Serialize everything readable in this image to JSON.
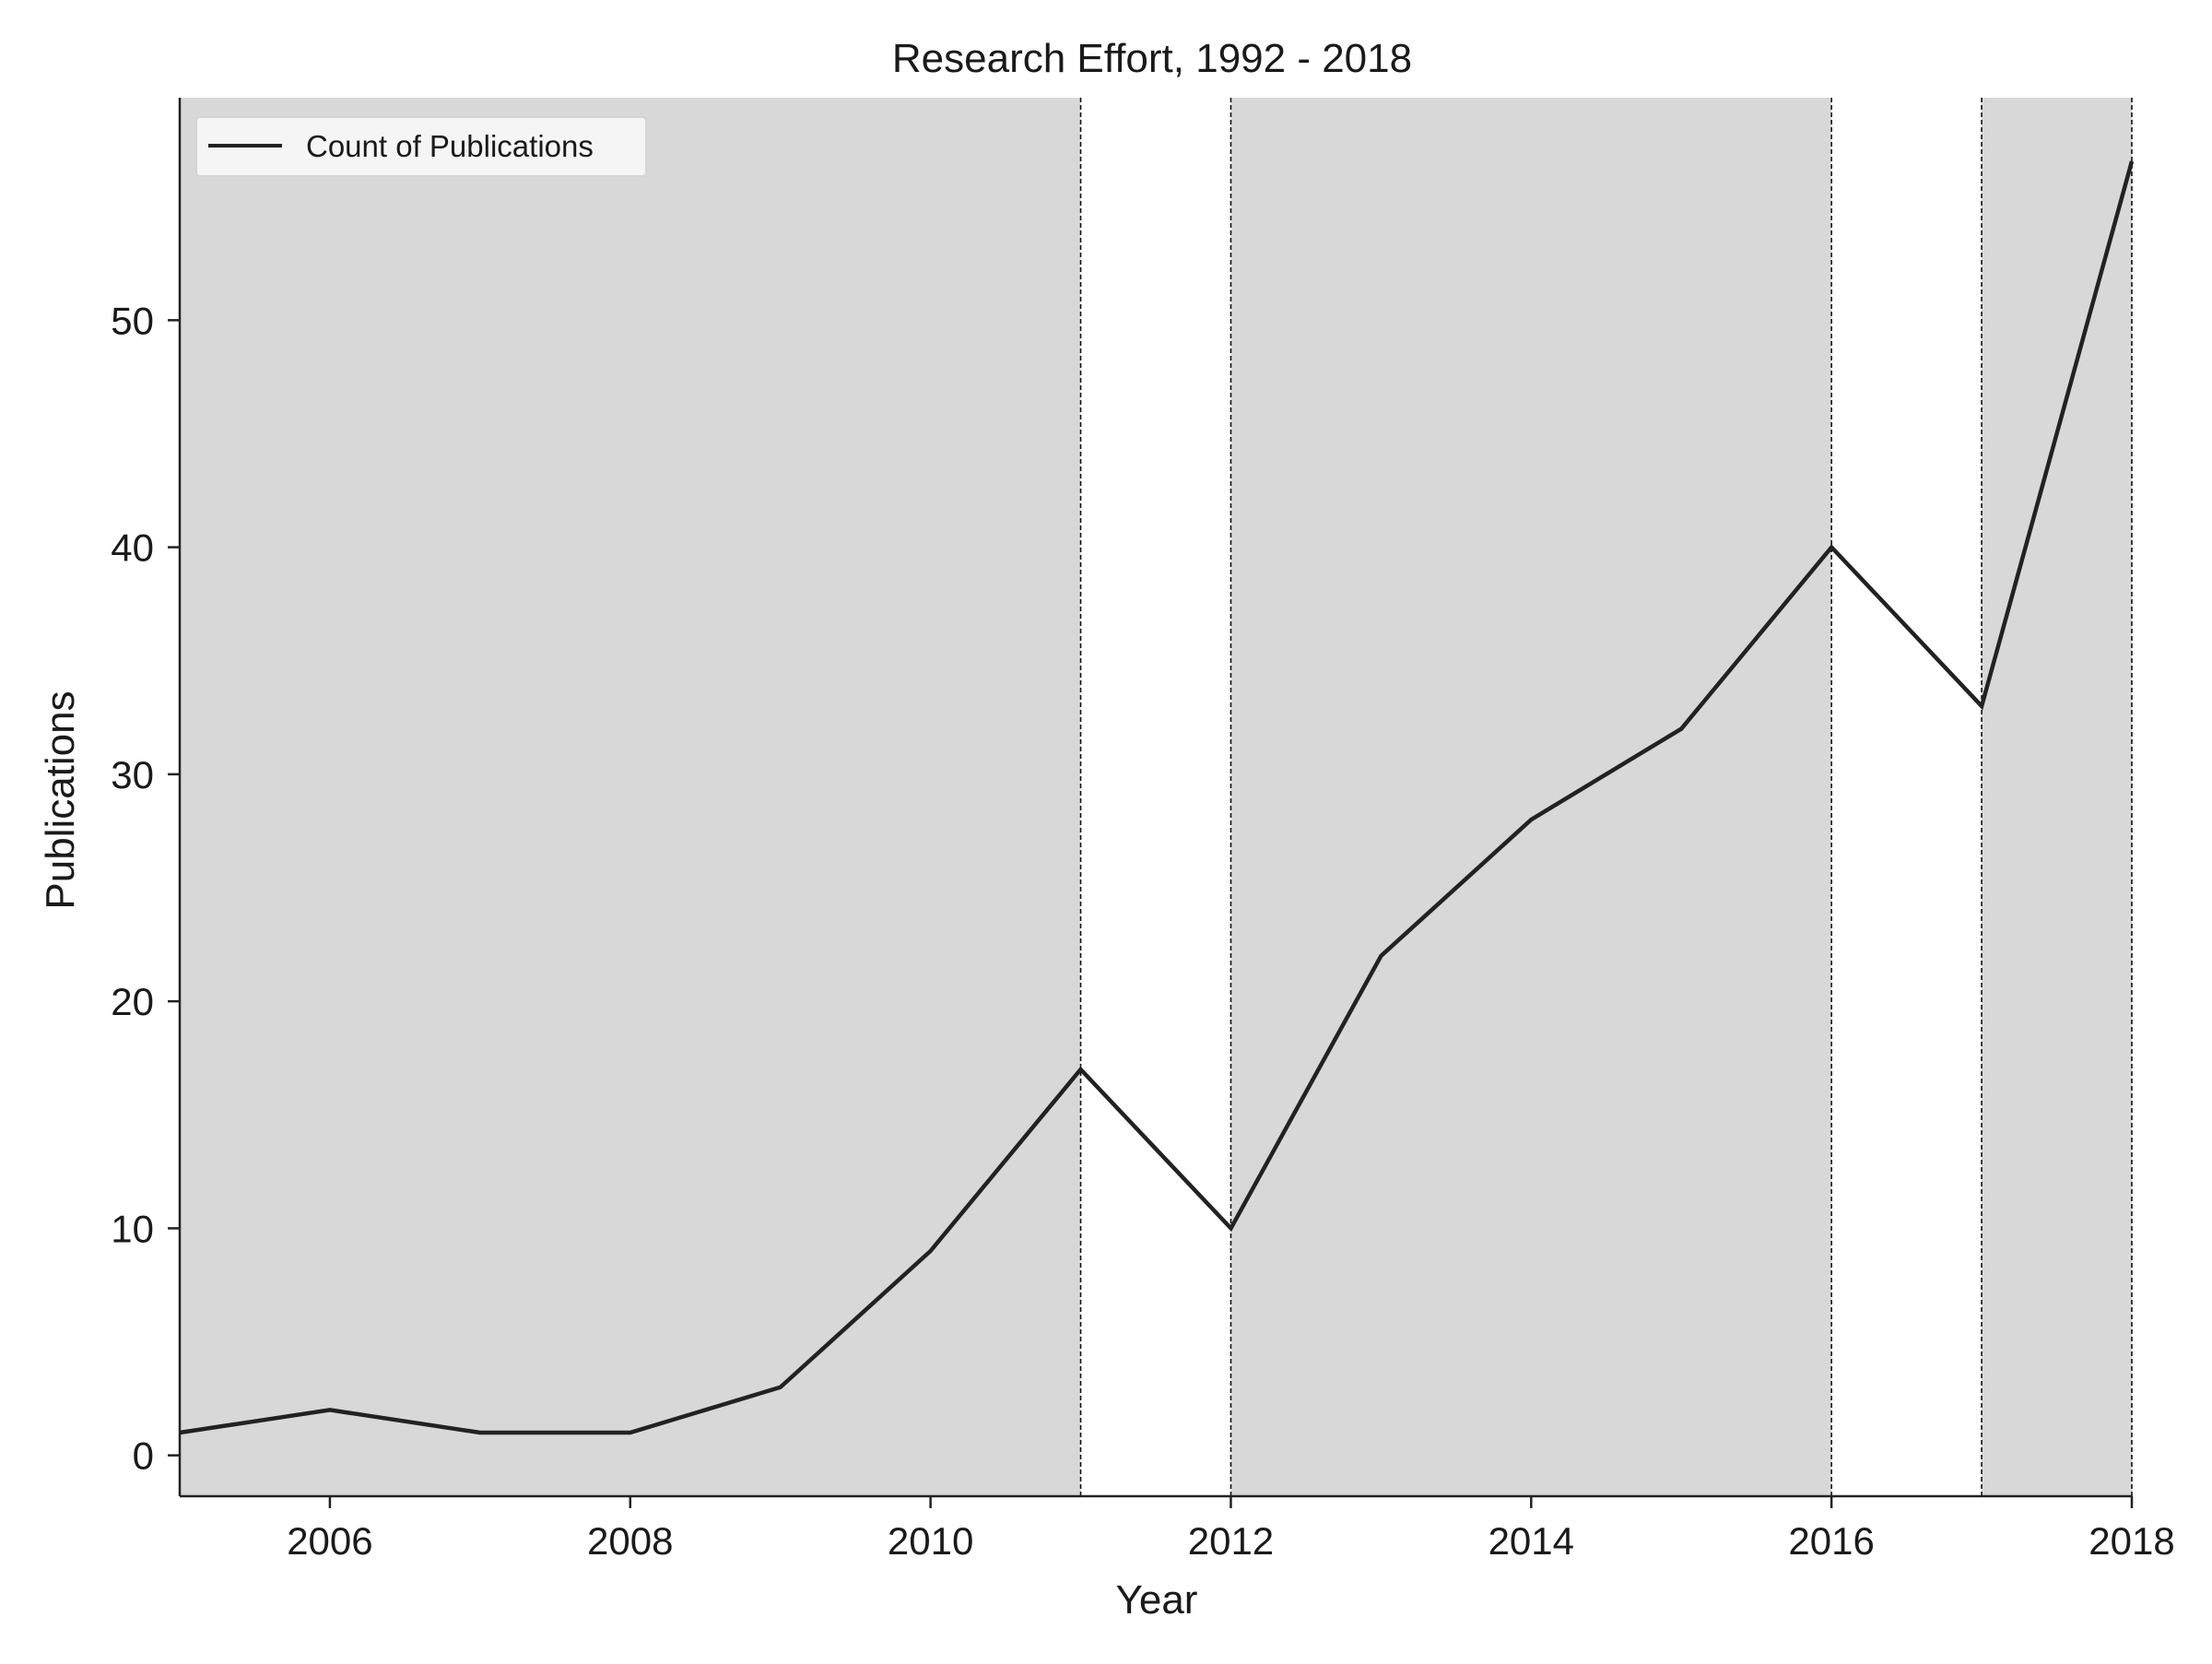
{
  "chart_data": {
    "type": "line",
    "title": "Research Effort, 1992 - 2018",
    "xlabel": "Year",
    "ylabel": "Publications",
    "xlim": [
      2005,
      2018
    ],
    "ylim": [
      -1.8,
      59.8
    ],
    "xticks": [
      2006,
      2008,
      2010,
      2012,
      2014,
      2016,
      2018
    ],
    "yticks": [
      0,
      10,
      20,
      30,
      40,
      50
    ],
    "grid": false,
    "legend_position": "top-left",
    "series": [
      {
        "name": "Count of Publications",
        "color": "#222222",
        "x": [
          2005,
          2006,
          2007,
          2008,
          2009,
          2010,
          2011,
          2012,
          2013,
          2014,
          2015,
          2016,
          2017,
          2018
        ],
        "y": [
          1,
          2,
          1,
          1,
          3,
          9,
          17,
          10,
          22,
          28,
          32,
          40,
          33,
          57
        ]
      }
    ],
    "shaded_spans": [
      {
        "from": 2005,
        "to": 2011
      },
      {
        "from": 2012,
        "to": 2016
      },
      {
        "from": 2017,
        "to": 2018
      }
    ],
    "vertical_lines": [
      2011,
      2012,
      2016,
      2017,
      2018
    ],
    "shade_color": "#d8d8d8"
  }
}
